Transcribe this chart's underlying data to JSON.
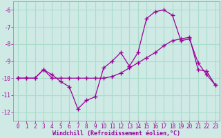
{
  "xlabel": "Windchill (Refroidissement éolien,°C)",
  "bg_color": "#cfe9e5",
  "line_color": "#990099",
  "grid_color": "#aaddcc",
  "x": [
    0,
    1,
    2,
    3,
    4,
    5,
    6,
    7,
    8,
    9,
    10,
    11,
    12,
    13,
    14,
    15,
    16,
    17,
    18,
    19,
    20,
    21,
    22,
    23
  ],
  "line1": [
    -10.0,
    -10.0,
    -10.0,
    -9.5,
    -9.8,
    -10.2,
    -10.5,
    -11.8,
    -11.3,
    -11.1,
    -9.4,
    -9.0,
    -8.5,
    -9.3,
    -8.5,
    -6.5,
    -6.1,
    -6.0,
    -6.3,
    -7.8,
    -7.7,
    -9.1,
    -9.8,
    -10.4
  ],
  "line2": [
    -10.0,
    -10.0,
    -10.0,
    -9.5,
    -10.0,
    -10.0,
    -10.0,
    -10.0,
    -10.0,
    -10.0,
    -10.0,
    -9.9,
    -9.7,
    -9.4,
    -9.1,
    -8.8,
    -8.5,
    -8.1,
    -7.8,
    -7.7,
    -7.6,
    -9.5,
    -9.6,
    -10.4
  ],
  "ylim": [
    -12.5,
    -5.5
  ],
  "xlim": [
    -0.5,
    23.5
  ],
  "yticks": [
    -12,
    -11,
    -10,
    -9,
    -8,
    -7,
    -6
  ],
  "xticks": [
    0,
    1,
    2,
    3,
    4,
    5,
    6,
    7,
    8,
    9,
    10,
    11,
    12,
    13,
    14,
    15,
    16,
    17,
    18,
    19,
    20,
    21,
    22,
    23
  ],
  "tick_fontsize": 5.5,
  "label_fontsize": 6.0
}
